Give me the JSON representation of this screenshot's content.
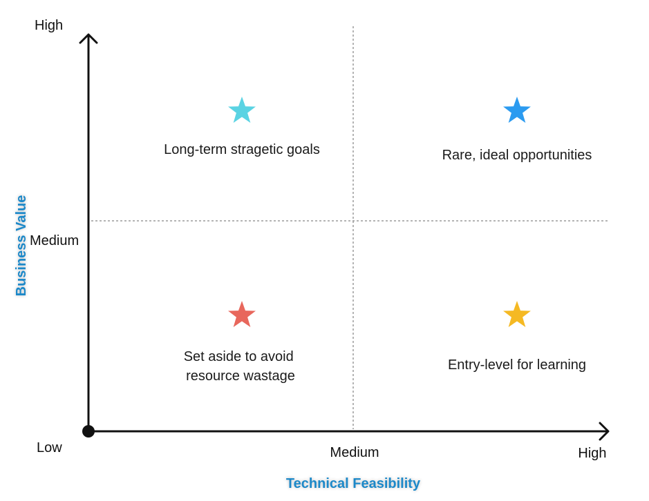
{
  "y_axis": {
    "title": "Business Value",
    "ticks": {
      "high": "High",
      "medium": "Medium",
      "low": "Low"
    }
  },
  "x_axis": {
    "title": "Technical Feasibility",
    "ticks": {
      "medium": "Medium",
      "high": "High"
    }
  },
  "quadrants": {
    "top_left": {
      "lines": [
        "Long-term stragetic goals"
      ],
      "star_color": "#5ad3e3"
    },
    "top_right": {
      "lines": [
        "Rare, ideal opportunities"
      ],
      "star_color": "#2b9bf0"
    },
    "bottom_left": {
      "lines": [
        "Set aside to avoid",
        "resource wastage"
      ],
      "star_color": "#e8675c"
    },
    "bottom_right": {
      "lines": [
        "Entry-level for learning"
      ],
      "star_color": "#f5b923"
    }
  },
  "colors": {
    "axis_title": "#1e88c8",
    "axis_line": "#111111",
    "divider": "#9a9a9a"
  }
}
